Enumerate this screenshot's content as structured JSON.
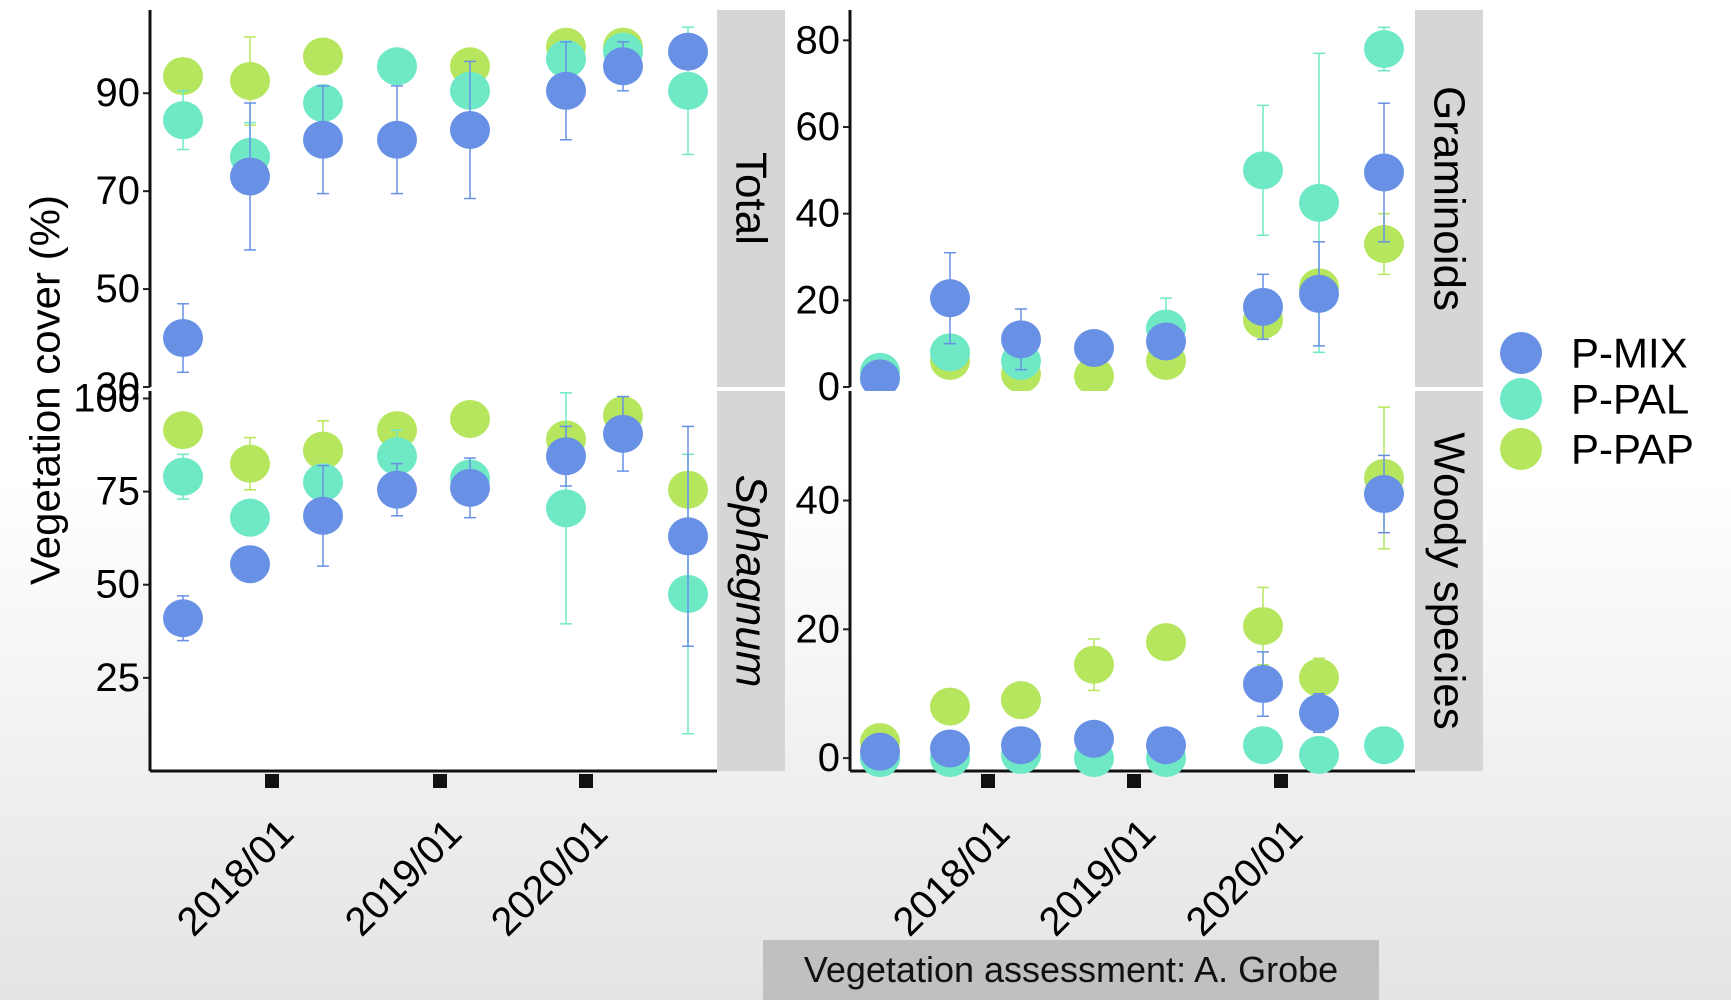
{
  "footer": {
    "credit": "Vegetation assessment: A. Grobe"
  },
  "colors": {
    "P-MIX": "#6891e6",
    "P-PAL": "#6fe8c6",
    "P-PAP": "#b6e65e",
    "strip": "#d6d6d6"
  },
  "chart_data": {
    "type": "scatter",
    "ylabel": "Vegetation cover (%)",
    "x": [
      "2017-05",
      "2017-09",
      "2018-01",
      "2018-05",
      "2018-09",
      "2019-01",
      "2019-05",
      "2019-09",
      "2020-01"
    ],
    "x_tick_labels": [
      "2018/01",
      "2019/01",
      "2020/01"
    ],
    "legend": {
      "position": "right",
      "entries": [
        "P-MIX",
        "P-PAL",
        "P-PAP"
      ]
    },
    "panels": [
      {
        "name": "Total",
        "italic": false,
        "ylim": [
          30,
          107
        ],
        "yticks": [
          30,
          50,
          70,
          90
        ],
        "series": [
          {
            "name": "P-MIX",
            "x_index": [
              0,
              1,
              2,
              3,
              4,
              5,
              6,
              7
            ],
            "values": [
              40,
              73,
              80.5,
              80.5,
              82.5,
              90.5,
              95.5,
              98.5
            ],
            "err": [
              7,
              15,
              11,
              11,
              14,
              10,
              5,
              0
            ]
          },
          {
            "name": "P-PAL",
            "x_index": [
              0,
              1,
              2,
              3,
              4,
              5,
              6,
              7
            ],
            "values": [
              84.5,
              77,
              88,
              95.5,
              90.5,
              97,
              98.5,
              90.5
            ],
            "err": [
              6,
              7,
              0,
              0,
              0,
              0,
              0,
              13
            ]
          },
          {
            "name": "P-PAP",
            "x_index": [
              0,
              1,
              2,
              3,
              4,
              5,
              6,
              7
            ],
            "values": [
              93.5,
              92.5,
              97.5,
              null,
              95.5,
              99.5,
              99.5,
              null
            ],
            "err": [
              0,
              9,
              0,
              0,
              0,
              0,
              0,
              0
            ]
          }
        ]
      },
      {
        "name": "Graminoids",
        "italic": false,
        "ylim": [
          0,
          87
        ],
        "yticks": [
          0,
          20,
          40,
          60,
          80
        ],
        "series": [
          {
            "name": "P-MIX",
            "x_index": [
              0,
              1,
              2,
              3,
              4,
              5,
              6,
              7
            ],
            "values": [
              2,
              20.5,
              11,
              9,
              10.5,
              18.5,
              21.5,
              49.5
            ],
            "err": [
              0,
              10.5,
              7,
              0,
              0,
              7.5,
              12,
              16
            ]
          },
          {
            "name": "P-PAL",
            "x_index": [
              0,
              1,
              2,
              3,
              4,
              5,
              6,
              7
            ],
            "values": [
              3.5,
              8,
              6,
              null,
              13.5,
              50,
              42.5,
              78
            ],
            "err": [
              1,
              0,
              0,
              0,
              7,
              15,
              34.5,
              5
            ]
          },
          {
            "name": "P-PAP",
            "x_index": [
              0,
              1,
              2,
              3,
              4,
              5,
              6,
              7
            ],
            "values": [
              null,
              6,
              3,
              2.5,
              6,
              15.5,
              23,
              33
            ],
            "err": [
              0,
              0,
              0,
              0,
              0,
              0,
              0,
              7
            ]
          }
        ]
      },
      {
        "name": "Sphagnum",
        "italic": true,
        "ylim": [
          0,
          102
        ],
        "yticks": [
          25,
          50,
          75,
          100
        ],
        "series": [
          {
            "name": "P-MIX",
            "x_index": [
              0,
              1,
              2,
              3,
              4,
              5,
              6,
              7
            ],
            "values": [
              41,
              55.5,
              68.5,
              75.5,
              76,
              84.5,
              90.5,
              63
            ],
            "err": [
              6,
              0,
              13.5,
              7,
              8,
              8,
              10,
              29.5
            ]
          },
          {
            "name": "P-PAL",
            "x_index": [
              0,
              1,
              2,
              3,
              4,
              5,
              6,
              7
            ],
            "values": [
              79,
              68,
              77.5,
              84.5,
              78.5,
              70.5,
              null,
              47.5
            ],
            "err": [
              6,
              0,
              0,
              7,
              0,
              31,
              0,
              37.5
            ]
          },
          {
            "name": "P-PAP",
            "x_index": [
              0,
              1,
              2,
              3,
              4,
              5,
              6,
              7
            ],
            "values": [
              91.5,
              82.5,
              86,
              91.5,
              94.5,
              89,
              95.5,
              75.5
            ],
            "err": [
              0,
              7,
              8,
              0,
              0,
              0,
              5,
              0
            ]
          }
        ]
      },
      {
        "name": "Woody species",
        "italic": false,
        "ylim": [
          -2,
          57
        ],
        "yticks": [
          0,
          20,
          40
        ],
        "series": [
          {
            "name": "P-MIX",
            "x_index": [
              0,
              1,
              2,
              3,
              4,
              5,
              6,
              7
            ],
            "values": [
              1,
              1.5,
              2,
              3,
              2,
              11.5,
              7,
              41
            ],
            "err": [
              0,
              0,
              0,
              0,
              0,
              5,
              3,
              6
            ]
          },
          {
            "name": "P-PAL",
            "x_index": [
              0,
              1,
              2,
              3,
              4,
              5,
              6,
              7
            ],
            "values": [
              0,
              0,
              0.5,
              0,
              0,
              2,
              0.5,
              2
            ],
            "err": [
              0,
              0,
              0,
              0,
              0,
              0,
              0,
              0
            ]
          },
          {
            "name": "P-PAP",
            "x_index": [
              0,
              1,
              2,
              3,
              4,
              5,
              6,
              7
            ],
            "values": [
              2.5,
              8,
              9,
              14.5,
              18,
              20.5,
              12.5,
              43.5
            ],
            "err": [
              1,
              0,
              0,
              4,
              0,
              6,
              3,
              11
            ]
          }
        ]
      }
    ]
  }
}
